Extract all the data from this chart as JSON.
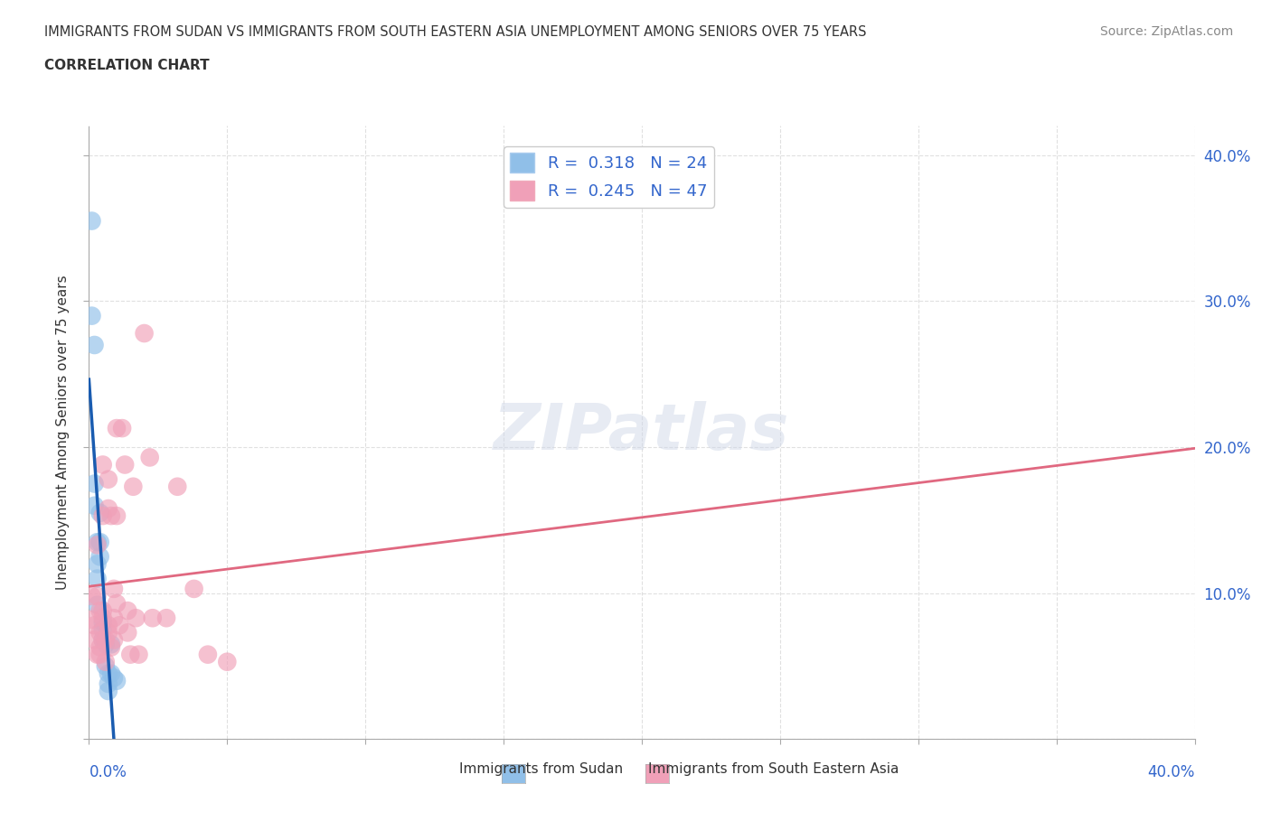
{
  "title_line1": "IMMIGRANTS FROM SUDAN VS IMMIGRANTS FROM SOUTH EASTERN ASIA UNEMPLOYMENT AMONG SENIORS OVER 75 YEARS",
  "title_line2": "CORRELATION CHART",
  "source": "Source: ZipAtlas.com",
  "ylabel": "Unemployment Among Seniors over 75 years",
  "xlim": [
    0.0,
    0.4
  ],
  "ylim": [
    0.0,
    0.42
  ],
  "color_blue": "#90bfe8",
  "color_pink": "#f0a0b8",
  "color_blue_line": "#1a5cb0",
  "color_pink_line": "#e06880",
  "color_blue_dashed": "#7aaad8",
  "color_grid": "#cccccc",
  "color_label_blue": "#3366cc",
  "sudan_points": [
    [
      0.001,
      0.355
    ],
    [
      0.001,
      0.29
    ],
    [
      0.002,
      0.27
    ],
    [
      0.002,
      0.175
    ],
    [
      0.002,
      0.16
    ],
    [
      0.003,
      0.135
    ],
    [
      0.003,
      0.12
    ],
    [
      0.003,
      0.11
    ],
    [
      0.003,
      0.092
    ],
    [
      0.004,
      0.155
    ],
    [
      0.004,
      0.135
    ],
    [
      0.004,
      0.125
    ],
    [
      0.005,
      0.08
    ],
    [
      0.005,
      0.075
    ],
    [
      0.005,
      0.068
    ],
    [
      0.006,
      0.065
    ],
    [
      0.006,
      0.05
    ],
    [
      0.007,
      0.045
    ],
    [
      0.007,
      0.038
    ],
    [
      0.007,
      0.033
    ],
    [
      0.008,
      0.065
    ],
    [
      0.008,
      0.045
    ],
    [
      0.009,
      0.042
    ],
    [
      0.01,
      0.04
    ]
  ],
  "sea_points": [
    [
      0.001,
      0.098
    ],
    [
      0.001,
      0.082
    ],
    [
      0.002,
      0.078
    ],
    [
      0.002,
      0.068
    ],
    [
      0.003,
      0.058
    ],
    [
      0.003,
      0.133
    ],
    [
      0.003,
      0.098
    ],
    [
      0.004,
      0.088
    ],
    [
      0.004,
      0.073
    ],
    [
      0.004,
      0.063
    ],
    [
      0.004,
      0.058
    ],
    [
      0.005,
      0.188
    ],
    [
      0.005,
      0.153
    ],
    [
      0.005,
      0.088
    ],
    [
      0.005,
      0.083
    ],
    [
      0.005,
      0.068
    ],
    [
      0.006,
      0.068
    ],
    [
      0.006,
      0.053
    ],
    [
      0.007,
      0.178
    ],
    [
      0.007,
      0.158
    ],
    [
      0.007,
      0.078
    ],
    [
      0.007,
      0.073
    ],
    [
      0.008,
      0.063
    ],
    [
      0.008,
      0.153
    ],
    [
      0.009,
      0.103
    ],
    [
      0.009,
      0.083
    ],
    [
      0.009,
      0.068
    ],
    [
      0.01,
      0.213
    ],
    [
      0.01,
      0.153
    ],
    [
      0.01,
      0.093
    ],
    [
      0.011,
      0.078
    ],
    [
      0.012,
      0.213
    ],
    [
      0.013,
      0.188
    ],
    [
      0.014,
      0.088
    ],
    [
      0.014,
      0.073
    ],
    [
      0.015,
      0.058
    ],
    [
      0.016,
      0.173
    ],
    [
      0.017,
      0.083
    ],
    [
      0.018,
      0.058
    ],
    [
      0.02,
      0.278
    ],
    [
      0.022,
      0.193
    ],
    [
      0.023,
      0.083
    ],
    [
      0.028,
      0.083
    ],
    [
      0.032,
      0.173
    ],
    [
      0.038,
      0.103
    ],
    [
      0.043,
      0.058
    ],
    [
      0.05,
      0.053
    ]
  ]
}
